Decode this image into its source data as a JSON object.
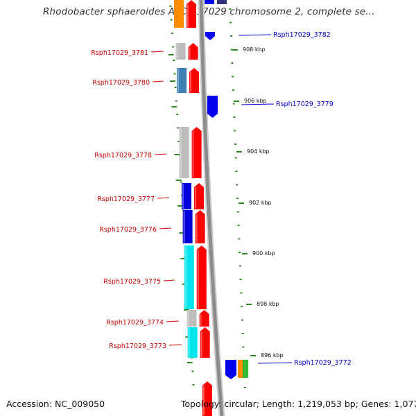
{
  "title": "Rhodobacter sphaeroides ATCC 17029 chromosome 2, complete se...",
  "footer": {
    "accession": "Accession: NC_009050",
    "summary": "Topology: circular; Length: 1,219,053 bp; Genes: 1,077"
  },
  "scale_labels": [
    "908 kbp",
    "906 kbp",
    "904 kbp",
    "902 kbp",
    "900 kbp",
    "898 kbp",
    "896 kbp"
  ],
  "genes_left": [
    "Rsph17029_3781",
    "Rsph17029_3780",
    "Rsph17029_3778",
    "Rsph17029_3777",
    "Rsph17029_3776",
    "Rsph17029_3775",
    "Rsph17029_3774",
    "Rsph17029_3773"
  ],
  "genes_right": [
    "Rsph17029_3782",
    "Rsph17029_3779",
    "Rsph17029_3772"
  ],
  "colors": {
    "label_left": "#cc0000",
    "label_right": "#0000cc",
    "backbone": "#8c8c8c",
    "tick": "#2e8b22",
    "cds_red": "#ff0000",
    "cds_blue": "#0000ee",
    "cog_grey": "#bdbdbd",
    "cog_blue": "#0000dd",
    "cog_steel": "#3f7fb5",
    "cog_cyan": "#00e5ee",
    "cog_orange": "#ff8c00",
    "cog_green": "#33bb33",
    "cog_navy": "#33337a"
  }
}
